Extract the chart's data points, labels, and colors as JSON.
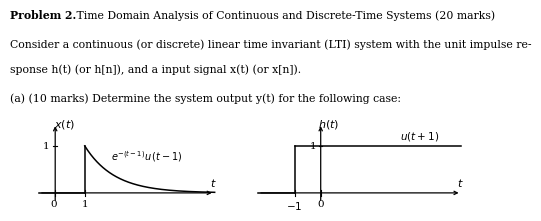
{
  "title_bold": "Problem 2.",
  "title_rest": " Time Domain Analysis of Continuous and Discrete-Time Systems (20 marks)",
  "line1": "Consider a continuous (or discrete) linear time invariant (LTI) system with the unit impulse re-",
  "line2": "sponse h(t) (or h[n]), and a input signal x(t) (or x[n]).",
  "line3": "(a) (10 marks) Determine the system output y(t) for the following case:",
  "bg_color": "#ffffff",
  "text_fs": 7.8,
  "axis_fs": 8.0,
  "formula_fs": 7.0,
  "tick_fs": 7.5
}
